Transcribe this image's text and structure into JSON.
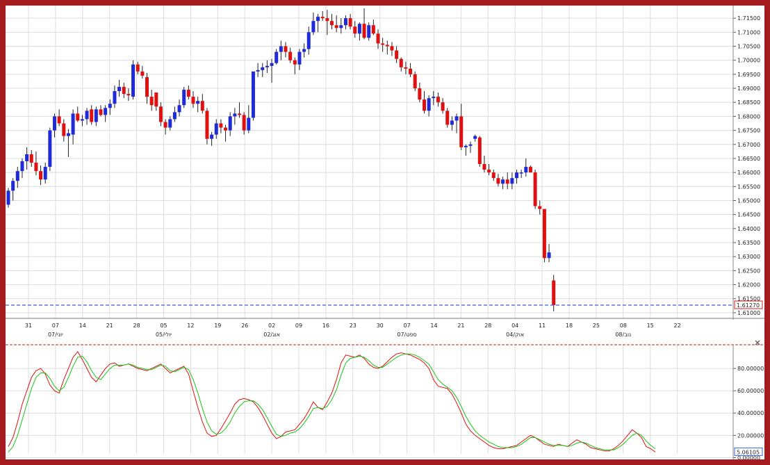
{
  "chart_data": [
    {
      "type": "candlestick",
      "price_ticks": [
        "1.71500",
        "1.71000",
        "1.70500",
        "1.70000",
        "1.69500",
        "1.69000",
        "1.68500",
        "1.68000",
        "1.67500",
        "1.67000",
        "1.66500",
        "1.66000",
        "1.65500",
        "1.65000",
        "1.64500",
        "1.64000",
        "1.63500",
        "1.63000",
        "1.62500",
        "1.62000",
        "1.61500",
        "1.61000"
      ],
      "ylim": [
        1.608,
        1.7195
      ],
      "last_price": 1.6127,
      "last_price_label": "1.61270",
      "day_ticks": [
        "31",
        "07",
        "14",
        "21",
        "28",
        "05",
        "12",
        "19",
        "26",
        "02",
        "09",
        "16",
        "23",
        "30",
        "07",
        "14",
        "21",
        "28",
        "04",
        "11",
        "18",
        "25",
        "08",
        "15",
        "22"
      ],
      "month_labels": [
        "יוני/07",
        "יולי/05",
        "אוג/02",
        "ספט/07",
        "אוק/04",
        "נוב/08"
      ],
      "colors": {
        "up": "#1f2bd8",
        "down": "#e01010",
        "last_price_line": "#3a5fd8"
      },
      "candles": [
        [
          1.6485,
          1.6545,
          1.6475,
          1.6535
        ],
        [
          1.6535,
          1.658,
          1.65,
          1.657
        ],
        [
          1.657,
          1.662,
          1.6545,
          1.6605
        ],
        [
          1.6605,
          1.665,
          1.658,
          1.664
        ],
        [
          1.664,
          1.669,
          1.661,
          1.6665
        ],
        [
          1.6665,
          1.668,
          1.662,
          1.6635
        ],
        [
          1.6635,
          1.6675,
          1.659,
          1.6605
        ],
        [
          1.6605,
          1.6625,
          1.6555,
          1.6575
        ],
        [
          1.6575,
          1.6635,
          1.656,
          1.662
        ],
        [
          1.662,
          1.676,
          1.6605,
          1.675
        ],
        [
          1.675,
          1.681,
          1.6725,
          1.68
        ],
        [
          1.68,
          1.6825,
          1.6765,
          1.6775
        ],
        [
          1.6775,
          1.679,
          1.671,
          1.673
        ],
        [
          1.673,
          1.6755,
          1.6655,
          1.674
        ],
        [
          1.6735,
          1.6825,
          1.67,
          1.681
        ],
        [
          1.681,
          1.6835,
          1.678,
          1.6785
        ],
        [
          1.6785,
          1.6805,
          1.6765,
          1.679
        ],
        [
          1.679,
          1.683,
          1.677,
          1.682
        ],
        [
          1.6825,
          1.684,
          1.677,
          1.678
        ],
        [
          1.678,
          1.6835,
          1.6765,
          1.6825
        ],
        [
          1.6825,
          1.684,
          1.68,
          1.6805
        ],
        [
          1.6805,
          1.684,
          1.678,
          1.683
        ],
        [
          1.683,
          1.686,
          1.6805,
          1.6845
        ],
        [
          1.6845,
          1.691,
          1.683,
          1.689
        ],
        [
          1.689,
          1.693,
          1.687,
          1.6905
        ],
        [
          1.6905,
          1.692,
          1.6865,
          1.688
        ],
        [
          1.688,
          1.69,
          1.6855,
          1.6875
        ],
        [
          1.687,
          1.7,
          1.686,
          1.6985
        ],
        [
          1.6985,
          1.6995,
          1.695,
          1.696
        ],
        [
          1.696,
          1.698,
          1.6935,
          1.6945
        ],
        [
          1.694,
          1.6955,
          1.6845,
          1.687
        ],
        [
          1.687,
          1.6895,
          1.682,
          1.684
        ],
        [
          1.6885,
          1.688,
          1.682,
          1.6835
        ],
        [
          1.6835,
          1.685,
          1.6765,
          1.678
        ],
        [
          1.678,
          1.679,
          1.6735,
          1.676
        ],
        [
          1.676,
          1.68,
          1.675,
          1.679
        ],
        [
          1.679,
          1.6835,
          1.678,
          1.6815
        ],
        [
          1.6815,
          1.686,
          1.68,
          1.684
        ],
        [
          1.684,
          1.6905,
          1.683,
          1.6895
        ],
        [
          1.6895,
          1.691,
          1.686,
          1.687
        ],
        [
          1.687,
          1.689,
          1.683,
          1.6845
        ],
        [
          1.6845,
          1.687,
          1.6815,
          1.6855
        ],
        [
          1.6855,
          1.688,
          1.681,
          1.682
        ],
        [
          1.682,
          1.683,
          1.67,
          1.672
        ],
        [
          1.672,
          1.6745,
          1.6695,
          1.6735
        ],
        [
          1.6735,
          1.679,
          1.672,
          1.6775
        ],
        [
          1.6775,
          1.679,
          1.674,
          1.676
        ],
        [
          1.676,
          1.677,
          1.671,
          1.675
        ],
        [
          1.675,
          1.6815,
          1.673,
          1.68
        ],
        [
          1.68,
          1.683,
          1.677,
          1.681
        ],
        [
          1.681,
          1.685,
          1.6795,
          1.6805
        ],
        [
          1.6805,
          1.6815,
          1.6735,
          1.675
        ],
        [
          1.675,
          1.684,
          1.674,
          1.6795
        ],
        [
          1.6795,
          1.696,
          1.6785,
          1.696
        ],
        [
          1.696,
          1.699,
          1.694,
          1.6965
        ],
        [
          1.6965,
          1.699,
          1.694,
          1.6975
        ],
        [
          1.6975,
          1.7,
          1.6955,
          1.698
        ],
        [
          1.698,
          1.7005,
          1.692,
          1.699
        ],
        [
          1.699,
          1.704,
          1.6985,
          1.703
        ],
        [
          1.703,
          1.707,
          1.7,
          1.705
        ],
        [
          1.705,
          1.7065,
          1.701,
          1.703
        ],
        [
          1.703,
          1.7045,
          1.699,
          1.7
        ],
        [
          1.7,
          1.701,
          1.695,
          1.6985
        ],
        [
          1.6985,
          1.704,
          1.6965,
          1.703
        ],
        [
          1.703,
          1.706,
          1.701,
          1.704
        ],
        [
          1.704,
          1.712,
          1.702,
          1.71
        ],
        [
          1.71,
          1.717,
          1.709,
          1.714
        ],
        [
          1.714,
          1.7165,
          1.71,
          1.7155
        ],
        [
          1.7155,
          1.7175,
          1.714,
          1.715
        ],
        [
          1.715,
          1.718,
          1.709,
          1.714
        ],
        [
          1.714,
          1.7165,
          1.711,
          1.7125
        ],
        [
          1.7125,
          1.716,
          1.71,
          1.7115
        ],
        [
          1.7115,
          1.715,
          1.7095,
          1.7125
        ],
        [
          1.7125,
          1.716,
          1.711,
          1.715
        ],
        [
          1.715,
          1.7165,
          1.711,
          1.712
        ],
        [
          1.712,
          1.714,
          1.708,
          1.7095
        ],
        [
          1.7095,
          1.7135,
          1.707,
          1.713
        ],
        [
          1.713,
          1.7185,
          1.7075,
          1.708
        ],
        [
          1.708,
          1.7135,
          1.707,
          1.7125
        ],
        [
          1.7125,
          1.7145,
          1.709,
          1.7095
        ],
        [
          1.7095,
          1.711,
          1.704,
          1.706
        ],
        [
          1.706,
          1.708,
          1.703,
          1.7055
        ],
        [
          1.7055,
          1.707,
          1.702,
          1.705
        ],
        [
          1.705,
          1.7065,
          1.7015,
          1.7035
        ],
        [
          1.7035,
          1.705,
          1.699,
          1.7005
        ],
        [
          1.7005,
          1.701,
          1.696,
          1.6975
        ],
        [
          1.6975,
          1.6995,
          1.695,
          1.697
        ],
        [
          1.697,
          1.699,
          1.694,
          1.695
        ],
        [
          1.695,
          1.696,
          1.689,
          1.69
        ],
        [
          1.69,
          1.692,
          1.685,
          1.686
        ],
        [
          1.686,
          1.689,
          1.681,
          1.682
        ],
        [
          1.682,
          1.6875,
          1.68,
          1.6865
        ],
        [
          1.6865,
          1.689,
          1.684,
          1.687
        ],
        [
          1.687,
          1.6885,
          1.6835,
          1.685
        ],
        [
          1.685,
          1.6865,
          1.681,
          1.682
        ],
        [
          1.682,
          1.683,
          1.676,
          1.677
        ],
        [
          1.677,
          1.68,
          1.675,
          1.6785
        ],
        [
          1.6785,
          1.681,
          1.674,
          1.68
        ],
        [
          1.68,
          1.6845,
          1.668,
          1.669
        ],
        [
          1.669,
          1.67,
          1.666,
          1.6695
        ],
        [
          1.6695,
          1.671,
          1.667,
          1.67
        ],
        [
          1.672,
          1.6735,
          1.671,
          1.673
        ],
        [
          1.6725,
          1.673,
          1.662,
          1.663
        ],
        [
          1.663,
          1.666,
          1.66,
          1.661
        ],
        [
          1.661,
          1.663,
          1.659,
          1.66
        ],
        [
          1.66,
          1.661,
          1.657,
          1.658
        ],
        [
          1.658,
          1.6595,
          1.655,
          1.656
        ],
        [
          1.656,
          1.6585,
          1.654,
          1.6575
        ],
        [
          1.6575,
          1.66,
          1.654,
          1.656
        ],
        [
          1.656,
          1.66,
          1.654,
          1.658
        ],
        [
          1.658,
          1.661,
          1.656,
          1.66
        ],
        [
          1.66,
          1.661,
          1.658,
          1.66
        ],
        [
          1.66,
          1.665,
          1.6585,
          1.662
        ],
        [
          1.662,
          1.6625,
          1.66,
          1.66
        ],
        [
          1.66,
          1.661,
          1.647,
          1.648
        ],
        [
          1.648,
          1.65,
          1.645,
          1.647
        ],
        [
          1.647,
          1.6465,
          1.628,
          1.6295
        ],
        [
          1.6295,
          1.6345,
          1.628,
          1.6315
        ],
        [
          1.6215,
          1.6235,
          1.6105,
          1.6127
        ]
      ]
    },
    {
      "type": "line",
      "y_ticks": [
        "80.00000",
        "60.00000",
        "40.00000",
        "20.00000",
        "0.00000"
      ],
      "ylim": [
        -1,
        100
      ],
      "last_value_label": "5.06105",
      "series": [
        {
          "color": "#e01010",
          "values": [
            10,
            18,
            32,
            48,
            60,
            72,
            78,
            80,
            75,
            65,
            60,
            58,
            70,
            80,
            90,
            95,
            88,
            80,
            72,
            68,
            74,
            80,
            84,
            85,
            82,
            83,
            84,
            82,
            80,
            79,
            78,
            80,
            82,
            84,
            80,
            76,
            78,
            80,
            82,
            75,
            60,
            45,
            32,
            22,
            19,
            20,
            26,
            33,
            40,
            48,
            52,
            53,
            52,
            50,
            45,
            38,
            30,
            22,
            17,
            19,
            23,
            24,
            25,
            30,
            35,
            42,
            50,
            45,
            43,
            50,
            58,
            70,
            85,
            92,
            91,
            90,
            92,
            89,
            84,
            81,
            80,
            82,
            86,
            90,
            93,
            94,
            93,
            92,
            90,
            88,
            85,
            80,
            70,
            64,
            63,
            62,
            57,
            49,
            40,
            30,
            24,
            20,
            17,
            14,
            11,
            9,
            8,
            8,
            9,
            10,
            11,
            14,
            17,
            20,
            18,
            15,
            12,
            11,
            10,
            12,
            11,
            10,
            13,
            16,
            14,
            12,
            9,
            8,
            7,
            6,
            6,
            8,
            11,
            15,
            20,
            25,
            22,
            18,
            10,
            8,
            5
          ]
        },
        {
          "color": "#14c414",
          "values": [
            5,
            10,
            20,
            34,
            48,
            62,
            72,
            76,
            76,
            71,
            64,
            60,
            63,
            72,
            82,
            90,
            91,
            86,
            78,
            72,
            70,
            75,
            80,
            83,
            83,
            83,
            84,
            83,
            81,
            80,
            79,
            79,
            81,
            83,
            82,
            78,
            77,
            79,
            81,
            79,
            70,
            58,
            44,
            32,
            24,
            21,
            22,
            26,
            32,
            40,
            46,
            50,
            51,
            51,
            48,
            43,
            36,
            28,
            21,
            19,
            20,
            22,
            23,
            26,
            31,
            37,
            44,
            45,
            44,
            46,
            52,
            61,
            74,
            85,
            89,
            90,
            91,
            90,
            87,
            83,
            81,
            81,
            84,
            87,
            90,
            92,
            93,
            93,
            92,
            90,
            87,
            84,
            77,
            70,
            66,
            63,
            60,
            54,
            46,
            37,
            30,
            24,
            20,
            17,
            14,
            12,
            10,
            9,
            9,
            9,
            10,
            12,
            15,
            18,
            18,
            16,
            14,
            12,
            11,
            11,
            11,
            10,
            11,
            13,
            14,
            13,
            11,
            9,
            8,
            7,
            7,
            7,
            9,
            12,
            16,
            20,
            22,
            20,
            15,
            11,
            8
          ]
        }
      ]
    }
  ]
}
